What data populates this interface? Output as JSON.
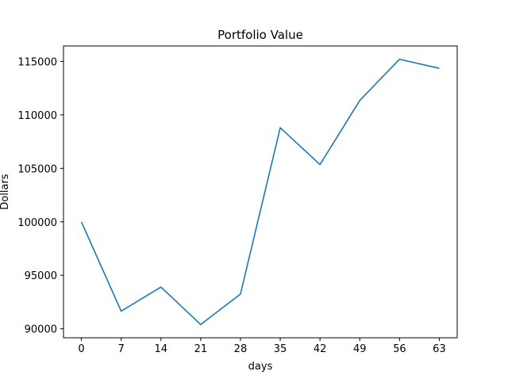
{
  "chart_data": {
    "type": "line",
    "title": "Portfolio Value",
    "xlabel": "days",
    "ylabel": "Dollars",
    "x": [
      0,
      7,
      14,
      21,
      28,
      35,
      42,
      49,
      56,
      63
    ],
    "series": [
      {
        "values": [
          100000,
          91650,
          93900,
          90400,
          93250,
          108800,
          105350,
          111350,
          115200,
          114350
        ],
        "color": "#1f77b4"
      }
    ],
    "xticks": [
      0,
      7,
      14,
      21,
      28,
      35,
      42,
      49,
      56,
      63
    ],
    "yticks": [
      90000,
      95000,
      100000,
      105000,
      110000,
      115000
    ],
    "xlim": [
      -3.15,
      66.15
    ],
    "ylim": [
      89160,
      116440
    ],
    "grid": false,
    "legend": false
  }
}
